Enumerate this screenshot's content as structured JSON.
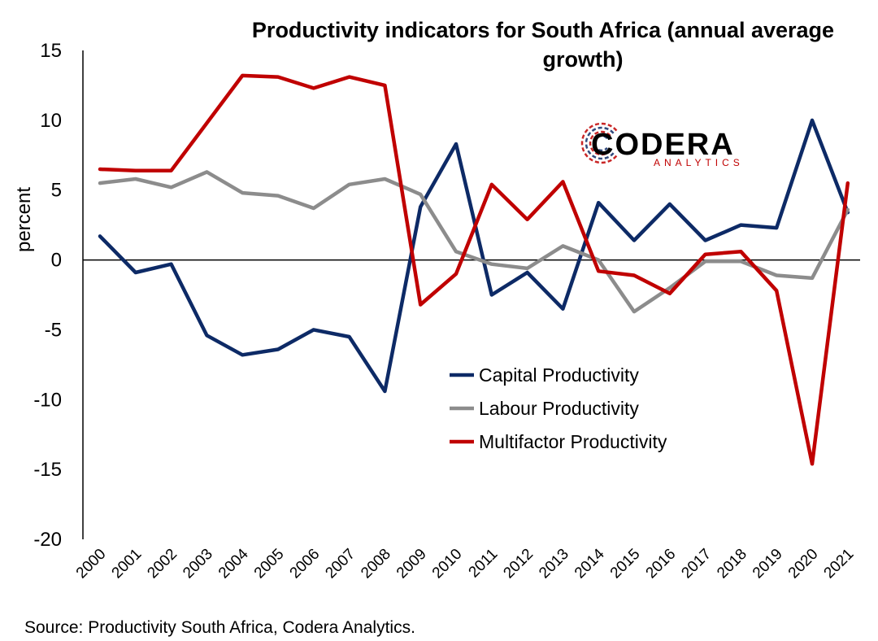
{
  "chart_data": {
    "type": "line",
    "title_lines": [
      "Productivity indicators for South Africa (annual average",
      "growth)"
    ],
    "ylabel": "percent",
    "xlabel": "",
    "ylim": [
      -20,
      15
    ],
    "yticks": [
      -20,
      -15,
      -10,
      -5,
      0,
      5,
      10,
      15
    ],
    "grid": false,
    "legend_position": "center-right",
    "categories": [
      "2000",
      "2001",
      "2002",
      "2003",
      "2004",
      "2005",
      "2006",
      "2007",
      "2008",
      "2009",
      "2010",
      "2011",
      "2012",
      "2013",
      "2014",
      "2015",
      "2016",
      "2017",
      "2018",
      "2019",
      "2020",
      "2021"
    ],
    "series": [
      {
        "name": "Capital Productivity",
        "color": "#0d2a66",
        "values": [
          1.7,
          -0.9,
          -0.3,
          -5.4,
          -6.8,
          -6.4,
          -5.0,
          -5.5,
          -9.4,
          3.8,
          8.3,
          -2.5,
          -0.9,
          -3.5,
          4.1,
          1.4,
          4.0,
          1.4,
          2.5,
          2.3,
          10.0,
          3.4
        ]
      },
      {
        "name": "Labour Productivity",
        "color": "#8c8c8c",
        "values": [
          5.5,
          5.8,
          5.2,
          6.3,
          4.8,
          4.6,
          3.7,
          5.4,
          5.8,
          4.7,
          0.6,
          -0.3,
          -0.6,
          1.0,
          0.0,
          -3.7,
          -2.0,
          -0.1,
          -0.1,
          -1.1,
          -1.3,
          3.6
        ]
      },
      {
        "name": "Multifactor Productivity",
        "color": "#c00000",
        "values": [
          6.5,
          6.4,
          6.4,
          9.8,
          13.2,
          13.1,
          12.3,
          13.1,
          12.5,
          -3.2,
          -1.0,
          5.4,
          2.9,
          5.6,
          -0.8,
          -1.1,
          -2.4,
          0.4,
          0.6,
          -2.2,
          -14.6,
          5.5
        ]
      }
    ]
  },
  "logo": {
    "name": "CODERA",
    "sub": "ANALYTICS",
    "accent": "#c00000",
    "primary": "#0d2a66"
  },
  "source": "Source: Productivity South Africa, Codera Analytics."
}
